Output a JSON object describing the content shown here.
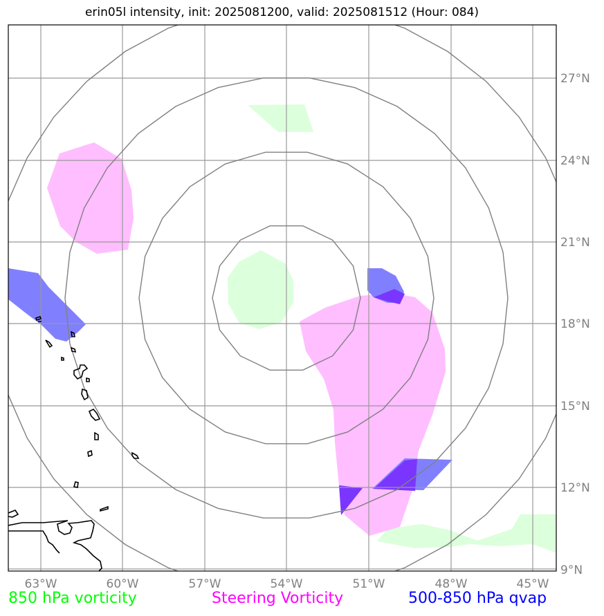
{
  "title": "erin05l intensity, init: 2025081200, valid: 2025081512 (Hour: 084)",
  "map": {
    "lon_labels": [
      "63°W",
      "60°W",
      "57°W",
      "54°W",
      "51°W",
      "48°W",
      "45°W"
    ],
    "lat_labels": [
      "27°N",
      "24°N",
      "21°N",
      "18°N",
      "15°N",
      "12°N",
      "9°N"
    ],
    "gridline_color": "#999999",
    "ring_color": "#808080",
    "coast_color": "#000000",
    "label_color": "#808080"
  },
  "legend": {
    "vort850": {
      "label": "850 hPa vorticity",
      "color": "#00ff00",
      "fill": "#dcffdc"
    },
    "steering": {
      "label": "Steering Vorticity",
      "color": "#ff00ff",
      "fill": "#ffbeff"
    },
    "qvap": {
      "label": "500-850 hPa qvap",
      "color": "#0000ff",
      "fill": "#8080ff",
      "overlap": "#7a36ff"
    }
  }
}
